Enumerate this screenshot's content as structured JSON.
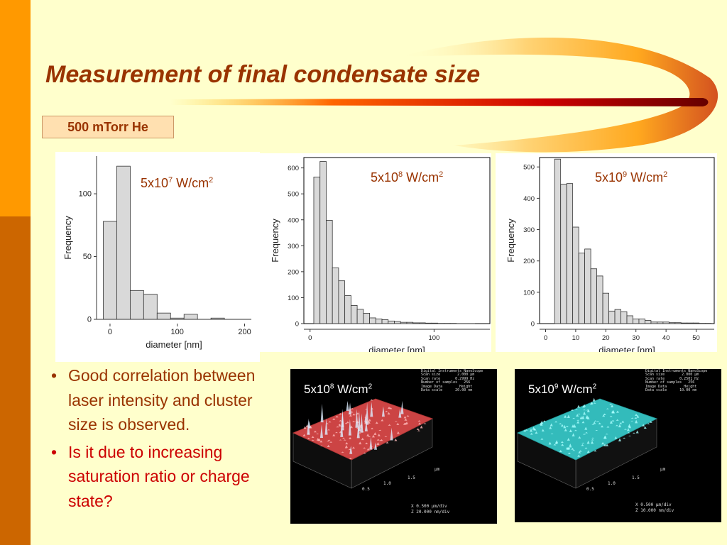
{
  "slide": {
    "title": "Measurement of final condensate size",
    "pressure_label": "500 mTorr He",
    "colors": {
      "background": "#ffffcc",
      "title": "#993300",
      "accent": "#cc6600",
      "bullet_black": "#993300",
      "bullet_red": "#cc0000"
    }
  },
  "histograms": [
    {
      "intensity_base": "5x10",
      "intensity_exp": "7",
      "intensity_unit": " W/cm",
      "intensity_unit_exp": "2"
    },
    {
      "intensity_base": "5x10",
      "intensity_exp": "8",
      "intensity_unit": " W/cm",
      "intensity_unit_exp": "2"
    },
    {
      "intensity_base": "5x10",
      "intensity_exp": "9",
      "intensity_unit": " W/cm",
      "intensity_unit_exp": "2"
    }
  ],
  "chart_data": [
    {
      "type": "bar",
      "xlabel": "diameter [nm]",
      "ylabel": "Frequency",
      "xlim": [
        -20,
        210
      ],
      "ylim": [
        0,
        130
      ],
      "xticks": [
        0,
        100,
        200
      ],
      "yticks": [
        0,
        50,
        100
      ],
      "bin_width": 20,
      "bin_starts": [
        -10,
        10,
        30,
        50,
        70,
        90,
        110,
        130,
        150,
        170,
        190
      ],
      "values": [
        78,
        122,
        23,
        20,
        5,
        1,
        4,
        0,
        1,
        0,
        0
      ]
    },
    {
      "type": "bar",
      "xlabel": "diameter [nm]",
      "ylabel": "Frequency",
      "xlim": [
        -5,
        145
      ],
      "ylim": [
        0,
        640
      ],
      "xticks": [
        0,
        100
      ],
      "yticks": [
        0,
        100,
        200,
        300,
        400,
        500,
        600
      ],
      "bin_width": 5,
      "bin_starts": [
        3,
        8,
        13,
        18,
        23,
        28,
        33,
        38,
        43,
        48,
        53,
        58,
        63,
        68,
        73,
        78,
        83,
        88,
        93,
        98,
        103,
        108,
        113,
        118,
        123,
        128
      ],
      "values": [
        565,
        625,
        398,
        215,
        165,
        108,
        70,
        55,
        40,
        22,
        18,
        15,
        10,
        8,
        5,
        5,
        3,
        3,
        2,
        2,
        1,
        1,
        1,
        0,
        0,
        0
      ]
    },
    {
      "type": "bar",
      "xlabel": "diameter [nm]",
      "ylabel": "Frequency",
      "xlim": [
        -2,
        56
      ],
      "ylim": [
        0,
        530
      ],
      "xticks": [
        0,
        10,
        20,
        30,
        40,
        50
      ],
      "yticks": [
        0,
        100,
        200,
        300,
        400,
        500
      ],
      "bin_width": 2,
      "bin_starts": [
        3,
        5,
        7,
        9,
        11,
        13,
        15,
        17,
        19,
        21,
        23,
        25,
        27,
        29,
        31,
        33,
        35,
        37,
        39,
        41,
        43,
        45,
        47,
        49,
        51,
        53
      ],
      "values": [
        525,
        445,
        447,
        308,
        225,
        238,
        175,
        152,
        97,
        40,
        45,
        38,
        25,
        15,
        15,
        10,
        5,
        5,
        5,
        3,
        3,
        2,
        2,
        2,
        1,
        1
      ]
    }
  ],
  "afm_images": [
    {
      "label_base": "5x10",
      "label_exp": "8",
      "label_unit": " W/cm",
      "label_unit_exp": "2",
      "surface_color": "#cc4444",
      "meta": "Digital Instruments NanoScope\nScan size        2.000 µm\nScan rate       0.2999 Hz\nNumber of samples   256\nImage Data        Height\nData scale      20.00 nm",
      "tick_um": "µm",
      "tick_15": "1.5",
      "tick_10": "1.0",
      "tick_05": "0.5",
      "scale_x": "X  0.500 µm/div",
      "scale_z": "Z  20.000 nm/div"
    },
    {
      "label_base": "5x10",
      "label_exp": "9",
      "label_unit": " W/cm",
      "label_unit_exp": "2",
      "surface_color": "#33bbbb",
      "meta": "Digital Instruments NanoScope\nScan size        2.000 µm\nScan rate       0.2501 Hz\nNumber of samples   256\nImage Data        Height\nData scale      10.00 nm",
      "tick_um": "µm",
      "tick_15": "1.5",
      "tick_10": "1.0",
      "tick_05": "0.5",
      "scale_x": "X  0.500 µm/div",
      "scale_z": "Z  10.000 nm/div"
    }
  ],
  "bullets": [
    {
      "text": "Good correlation between laser intensity and cluster size is observed.",
      "color": "#993300"
    },
    {
      "text": "Is it due to increasing saturation ratio or charge state?",
      "color": "#cc0000"
    }
  ],
  "bullet_symbol": "•"
}
